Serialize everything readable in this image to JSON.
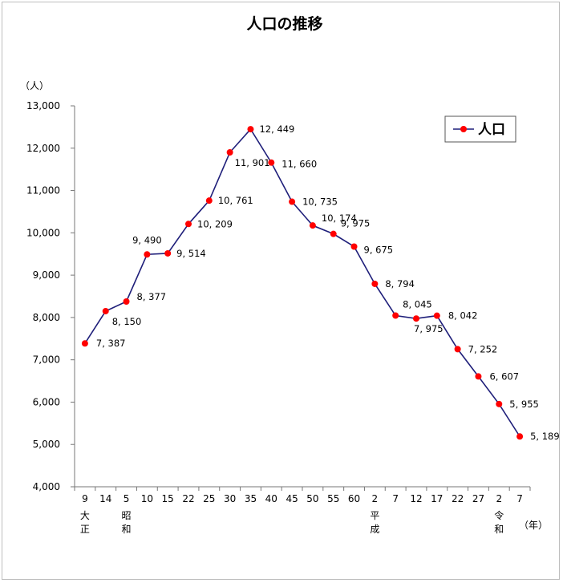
{
  "chart_data": {
    "type": "line",
    "title": "人口の推移",
    "y_unit_label": "（人）",
    "x_unit_label": "（年）",
    "ylim": [
      4000,
      13000
    ],
    "yticks": [
      "4,000",
      "5,000",
      "6,000",
      "7,000",
      "8,000",
      "9,000",
      "10,000",
      "11,000",
      "12,000",
      "13,000"
    ],
    "categories": [
      "9",
      "14",
      "5",
      "10",
      "15",
      "22",
      "25",
      "30",
      "35",
      "40",
      "45",
      "50",
      "55",
      "60",
      "2",
      "7",
      "12",
      "17",
      "22",
      "27",
      "2",
      "7"
    ],
    "era_labels": [
      {
        "index": 0,
        "chars": [
          "大",
          "正"
        ]
      },
      {
        "index": 2,
        "chars": [
          "昭",
          "和"
        ]
      },
      {
        "index": 14,
        "chars": [
          "平",
          "成"
        ]
      },
      {
        "index": 20,
        "chars": [
          "令",
          "和"
        ]
      }
    ],
    "series": [
      {
        "name": "人口",
        "color": "#1f1f7a",
        "marker_color": "#ff0000",
        "values": [
          7387,
          8150,
          8377,
          9490,
          9514,
          10209,
          10761,
          11901,
          12449,
          11660,
          10735,
          10174,
          9975,
          9675,
          8794,
          8045,
          7975,
          8042,
          7252,
          6607,
          5955,
          5189
        ],
        "value_labels": [
          "7, 387",
          "8, 150",
          "8, 377",
          "9, 490",
          "9, 514",
          "10, 209",
          "10, 761",
          "11, 901",
          "12, 449",
          "11, 660",
          "10, 735",
          "10, 174",
          "9, 975",
          "9, 675",
          "8, 794",
          "8, 045",
          "7, 975",
          "8, 042",
          "7, 252",
          "6, 607",
          "5, 955",
          "5, 189"
        ]
      }
    ],
    "grid": false,
    "legend": "top-right"
  }
}
